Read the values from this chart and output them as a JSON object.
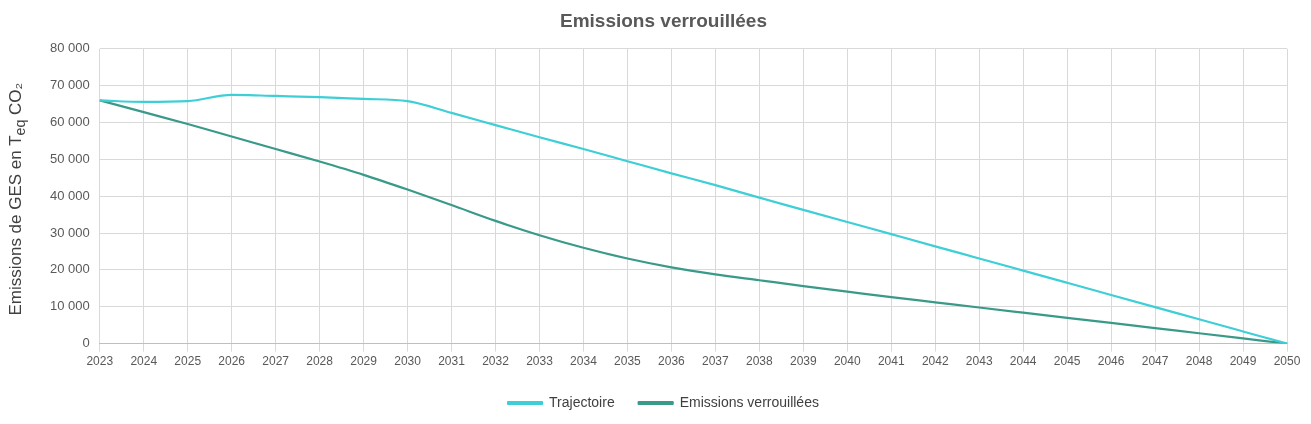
{
  "chart_data": {
    "type": "line",
    "title": "Emissions verrouillées",
    "ylabel": "Emissions de GES en T$_{eq}$ CO₂",
    "categories": [
      "2023",
      "2024",
      "2025",
      "2026",
      "2027",
      "2028",
      "2029",
      "2030",
      "2031",
      "2032",
      "2033",
      "2034",
      "2035",
      "2036",
      "2037",
      "2038",
      "2039",
      "2040",
      "2041",
      "2042",
      "2043",
      "2044",
      "2045",
      "2046",
      "2047",
      "2048",
      "2049",
      "2050"
    ],
    "series": [
      {
        "name": "Trajectoire",
        "color": "#3ecfd6",
        "values": [
          66000,
          65600,
          65800,
          67500,
          67200,
          66900,
          66400,
          65800,
          62600,
          59300,
          56000,
          52800,
          49500,
          46200,
          43000,
          39600,
          36300,
          33000,
          29700,
          26400,
          23100,
          19800,
          16500,
          13200,
          9900,
          6600,
          3300,
          0
        ]
      },
      {
        "name": "Emissions verrouillées",
        "color": "#3a9a8a",
        "values": [
          66000,
          62800,
          59600,
          56200,
          52800,
          49400,
          45800,
          41800,
          37600,
          33300,
          29400,
          26000,
          23100,
          20700,
          18800,
          17200,
          15600,
          14100,
          12600,
          11200,
          9800,
          8400,
          7000,
          5600,
          4200,
          2800,
          1400,
          0
        ]
      }
    ],
    "ylim": [
      0,
      80000
    ],
    "yticks": [
      {
        "value": 0,
        "label": "0"
      },
      {
        "value": 10000,
        "label": "10 000"
      },
      {
        "value": 20000,
        "label": "20 000"
      },
      {
        "value": 30000,
        "label": "30 000"
      },
      {
        "value": 40000,
        "label": "40 000"
      },
      {
        "value": 50000,
        "label": "50 000"
      },
      {
        "value": 60000,
        "label": "60 000"
      },
      {
        "value": 70000,
        "label": "70 000"
      },
      {
        "value": 80000,
        "label": "80 000"
      }
    ],
    "grid": true,
    "legend": "bottom",
    "marker": "none",
    "line_style": "solid"
  }
}
